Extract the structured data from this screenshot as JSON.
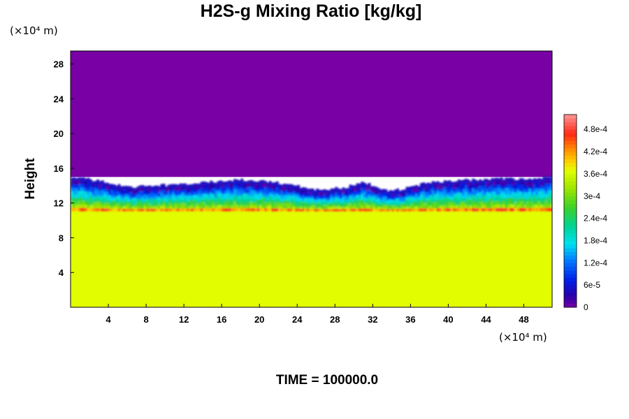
{
  "chart_data": {
    "type": "heatmap",
    "title": "H2S-g Mixing Ratio [kg/kg]",
    "ylabel": "Height",
    "x_units": "(×10⁴ m)",
    "y_units": "(×10⁴ m)",
    "footer": "TIME = 100000.0",
    "xlim": [
      0,
      51
    ],
    "ylim": [
      0,
      29.5
    ],
    "xticks": [
      4,
      8,
      12,
      16,
      20,
      24,
      28,
      32,
      36,
      40,
      44,
      48
    ],
    "yticks": [
      4,
      8,
      12,
      16,
      20,
      24,
      28
    ],
    "colorbar": {
      "range": [
        0,
        0.00052
      ],
      "tick_values": [
        0,
        6e-05,
        0.00012,
        0.00018,
        0.00024,
        0.0003,
        0.00036,
        0.00042,
        0.00048
      ],
      "tick_labels": [
        "0",
        "6e-5",
        "1.2e-4",
        "1.8e-4",
        "2.4e-4",
        "3e-4",
        "3.6e-4",
        "4.2e-4",
        "4.8e-4"
      ]
    },
    "regions": [
      {
        "name": "upper",
        "value": 0,
        "y_from": 15,
        "y_to": 29.5
      },
      {
        "name": "lower",
        "value": 0.00037,
        "y_from": 0,
        "y_to": 11.5
      }
    ],
    "interface_top": {
      "x": [
        0,
        3,
        6,
        10,
        14,
        18,
        22,
        26,
        29,
        31,
        34,
        38,
        42,
        46,
        49,
        51
      ],
      "y": [
        14.7,
        14.2,
        13.5,
        13.7,
        14.0,
        14.3,
        14.0,
        13.2,
        13.4,
        14.0,
        13.0,
        14.0,
        14.3,
        14.5,
        14.3,
        14.8
      ]
    }
  }
}
